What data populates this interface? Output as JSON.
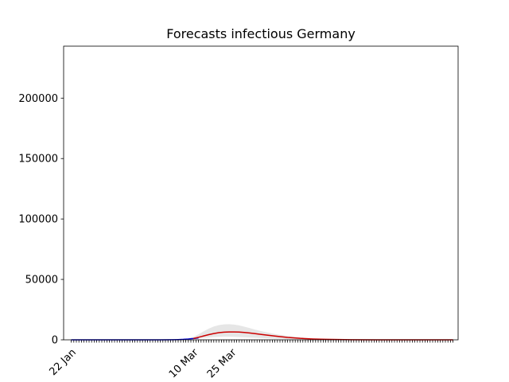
{
  "chart_data": {
    "type": "line",
    "title": "Forecasts infectious Germany",
    "xlabel": "",
    "ylabel": "",
    "x_start": "22 Jan",
    "x_tick_labels": [
      {
        "label": "22 Jan",
        "day": 0
      },
      {
        "label": "10 Mar",
        "day": 48
      },
      {
        "label": "25 Mar",
        "day": 63
      }
    ],
    "xlim": [
      -3,
      152
    ],
    "ylim": [
      0,
      243000
    ],
    "yticks": [
      0,
      50000,
      100000,
      150000,
      200000
    ],
    "grid": false,
    "series": [
      {
        "role": "observed",
        "color": "#0000cc",
        "points": [
          [
            0,
            0
          ],
          [
            10,
            0
          ],
          [
            20,
            0
          ],
          [
            30,
            0
          ],
          [
            35,
            10
          ],
          [
            40,
            80
          ],
          [
            42,
            200
          ],
          [
            44,
            400
          ],
          [
            46,
            700
          ],
          [
            48,
            1100
          ],
          [
            50,
            1600
          ]
        ]
      },
      {
        "role": "forecast",
        "color": "#cc0000",
        "points": [
          [
            48,
            1100
          ],
          [
            50,
            2100
          ],
          [
            52,
            3200
          ],
          [
            54,
            4300
          ],
          [
            56,
            5200
          ],
          [
            58,
            5900
          ],
          [
            60,
            6300
          ],
          [
            62,
            6500
          ],
          [
            64,
            6500
          ],
          [
            66,
            6400
          ],
          [
            68,
            6100
          ],
          [
            70,
            5700
          ],
          [
            72,
            5200
          ],
          [
            75,
            4400
          ],
          [
            80,
            3100
          ],
          [
            85,
            2000
          ],
          [
            90,
            1200
          ],
          [
            95,
            700
          ],
          [
            100,
            400
          ],
          [
            110,
            120
          ],
          [
            120,
            40
          ],
          [
            130,
            10
          ],
          [
            140,
            0
          ],
          [
            150,
            0
          ]
        ]
      }
    ],
    "band": {
      "color": "#e6e6e6",
      "upper": [
        [
          45,
          800
        ],
        [
          48,
          2500
        ],
        [
          50,
          4500
        ],
        [
          52,
          7000
        ],
        [
          54,
          9200
        ],
        [
          56,
          11000
        ],
        [
          58,
          12200
        ],
        [
          60,
          12800
        ],
        [
          62,
          12900
        ],
        [
          64,
          12600
        ],
        [
          66,
          11900
        ],
        [
          68,
          10900
        ],
        [
          70,
          9800
        ],
        [
          72,
          8600
        ],
        [
          75,
          7000
        ],
        [
          80,
          4800
        ],
        [
          85,
          3200
        ],
        [
          90,
          2000
        ],
        [
          95,
          1200
        ],
        [
          100,
          700
        ],
        [
          110,
          250
        ],
        [
          120,
          90
        ],
        [
          130,
          30
        ],
        [
          140,
          10
        ],
        [
          150,
          0
        ]
      ],
      "lower": [
        [
          45,
          400
        ],
        [
          48,
          900
        ],
        [
          50,
          1200
        ],
        [
          52,
          1600
        ],
        [
          54,
          2000
        ],
        [
          56,
          2300
        ],
        [
          58,
          2500
        ],
        [
          60,
          2600
        ],
        [
          62,
          2600
        ],
        [
          64,
          2500
        ],
        [
          66,
          2300
        ],
        [
          68,
          2100
        ],
        [
          70,
          1900
        ],
        [
          72,
          1700
        ],
        [
          75,
          1400
        ],
        [
          80,
          900
        ],
        [
          85,
          500
        ],
        [
          90,
          300
        ],
        [
          95,
          150
        ],
        [
          100,
          80
        ],
        [
          110,
          20
        ],
        [
          120,
          5
        ],
        [
          130,
          0
        ],
        [
          140,
          0
        ],
        [
          150,
          0
        ]
      ]
    },
    "minor_tick_days": {
      "first": 0,
      "last": 150,
      "step": 1
    }
  }
}
